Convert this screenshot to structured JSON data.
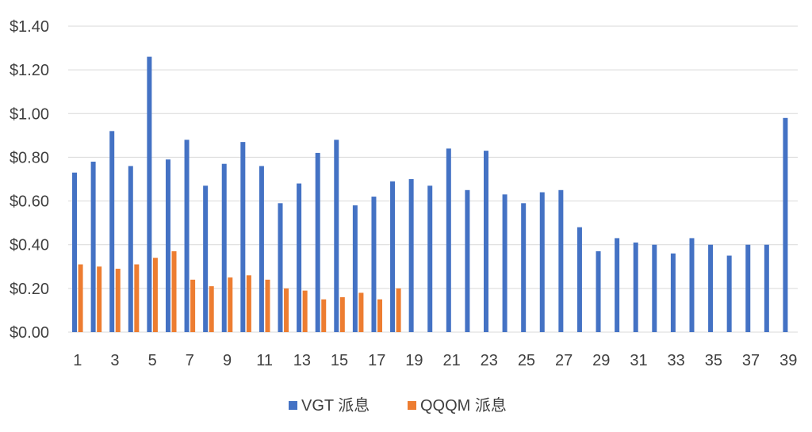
{
  "chart_data": {
    "type": "bar",
    "title": "",
    "xlabel": "",
    "ylabel": "",
    "ylim": [
      0,
      1.4
    ],
    "y_ticks": [
      "$0.00",
      "$0.20",
      "$0.40",
      "$0.60",
      "$0.80",
      "$1.00",
      "$1.20",
      "$1.40"
    ],
    "y_tick_values": [
      0,
      0.2,
      0.4,
      0.6,
      0.8,
      1.0,
      1.2,
      1.4
    ],
    "categories": [
      "1",
      "2",
      "3",
      "4",
      "5",
      "6",
      "7",
      "8",
      "9",
      "10",
      "11",
      "12",
      "13",
      "14",
      "15",
      "16",
      "17",
      "18",
      "19",
      "20",
      "21",
      "22",
      "23",
      "24",
      "25",
      "26",
      "27",
      "28",
      "29",
      "30",
      "31",
      "32",
      "33",
      "34",
      "35",
      "36",
      "37",
      "38",
      "39"
    ],
    "x_tick_labels": [
      "1",
      "3",
      "5",
      "7",
      "9",
      "11",
      "13",
      "15",
      "17",
      "19",
      "21",
      "23",
      "25",
      "27",
      "29",
      "31",
      "33",
      "35",
      "37",
      "39"
    ],
    "grid": true,
    "legend_position": "bottom",
    "series": [
      {
        "name": "VGT 派息",
        "color": "#4472C4",
        "values": [
          0.73,
          0.78,
          0.92,
          0.76,
          1.26,
          0.79,
          0.88,
          0.67,
          0.77,
          0.87,
          0.76,
          0.59,
          0.68,
          0.82,
          0.88,
          0.58,
          0.62,
          0.69,
          0.7,
          0.67,
          0.84,
          0.65,
          0.83,
          0.63,
          0.59,
          0.64,
          0.65,
          0.48,
          0.37,
          0.43,
          0.41,
          0.4,
          0.36,
          0.43,
          0.4,
          0.35,
          0.4,
          0.4,
          0.98
        ]
      },
      {
        "name": "QQQM 派息",
        "color": "#ED7D31",
        "values": [
          0.31,
          0.3,
          0.29,
          0.31,
          0.34,
          0.37,
          0.24,
          0.21,
          0.25,
          0.26,
          0.24,
          0.2,
          0.19,
          0.15,
          0.16,
          0.18,
          0.15,
          0.2,
          null,
          null,
          null,
          null,
          null,
          null,
          null,
          null,
          null,
          null,
          null,
          null,
          null,
          null,
          null,
          null,
          null,
          null,
          null,
          null,
          null
        ]
      }
    ]
  }
}
